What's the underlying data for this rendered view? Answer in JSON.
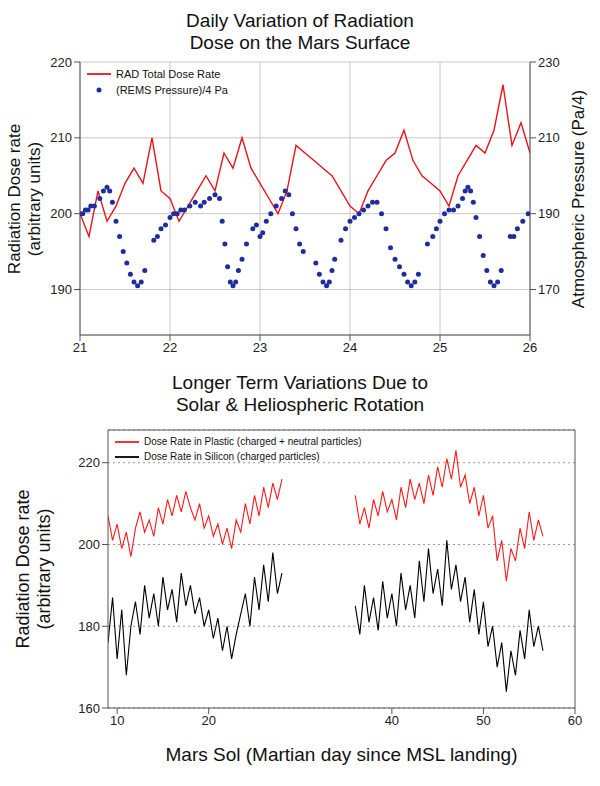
{
  "chart_data": [
    {
      "type": "line",
      "title": "Daily Variation of Radiation\nDose on the Mars Surface",
      "ylabel": "Radiation Dose rate\n(arbitrary units)",
      "y2label": "Atmospheric Pressure (Pa/4)",
      "xlim": [
        21,
        26
      ],
      "xticks": [
        21,
        22,
        23,
        24,
        25,
        26
      ],
      "ylim": [
        184,
        220
      ],
      "yticks": [
        190,
        200,
        210,
        220
      ],
      "y2lim": [
        158,
        230
      ],
      "y2ticks": [
        170,
        190,
        210,
        230
      ],
      "grid": true,
      "legend": "upper left",
      "series": [
        {
          "name": "RAD Total Dose Rate",
          "type": "line",
          "color": "#e8141b",
          "x": [
            21.0,
            21.1,
            21.2,
            21.3,
            21.4,
            21.5,
            21.6,
            21.7,
            21.8,
            21.9,
            22.0,
            22.1,
            22.2,
            22.3,
            22.4,
            22.5,
            22.6,
            22.7,
            22.8,
            22.9,
            23.0,
            23.1,
            23.2,
            23.3,
            23.4,
            23.5,
            23.6,
            23.7,
            23.8,
            23.9,
            24.0,
            24.1,
            24.2,
            24.3,
            24.4,
            24.5,
            24.6,
            24.7,
            24.8,
            24.9,
            25.0,
            25.1,
            25.2,
            25.3,
            25.4,
            25.5,
            25.6,
            25.7,
            25.8,
            25.9,
            26.0
          ],
          "values": [
            200,
            197,
            203,
            199,
            201,
            204,
            206,
            204,
            210,
            203,
            202,
            199,
            201,
            203,
            205,
            203,
            208,
            206,
            210,
            206,
            204,
            202,
            200,
            203,
            209,
            208,
            207,
            206,
            205,
            203,
            201,
            200,
            203,
            205,
            207,
            208,
            211,
            207,
            205,
            204,
            203,
            201,
            205,
            207,
            209,
            208,
            211,
            217,
            209,
            212,
            208
          ]
        },
        {
          "name": "(REMS Pressure)/4 Pa",
          "type": "scatter",
          "marker": "circle",
          "color": "#1f2c9c",
          "axis": "y2",
          "x": [
            21.0,
            21.03,
            21.06,
            21.09,
            21.12,
            21.16,
            21.22,
            21.26,
            21.3,
            21.33,
            21.36,
            21.4,
            21.44,
            21.48,
            21.52,
            21.56,
            21.6,
            21.64,
            21.68,
            21.72,
            21.82,
            21.86,
            21.9,
            21.95,
            22.0,
            22.04,
            22.08,
            22.12,
            22.16,
            22.22,
            22.28,
            22.34,
            22.38,
            22.44,
            22.5,
            22.55,
            22.58,
            22.61,
            22.64,
            22.67,
            22.7,
            22.73,
            22.76,
            22.8,
            22.85,
            22.92,
            22.96,
            23.0,
            23.03,
            23.07,
            23.12,
            23.18,
            23.24,
            23.28,
            23.32,
            23.36,
            23.4,
            23.44,
            23.48,
            23.62,
            23.66,
            23.7,
            23.74,
            23.77,
            23.8,
            23.83,
            23.9,
            23.95,
            24.0,
            24.05,
            24.1,
            24.15,
            24.2,
            24.25,
            24.3,
            24.35,
            24.4,
            24.45,
            24.5,
            24.55,
            24.6,
            24.64,
            24.68,
            24.72,
            24.76,
            24.86,
            24.92,
            24.96,
            25.0,
            25.05,
            25.1,
            25.15,
            25.2,
            25.25,
            25.28,
            25.31,
            25.34,
            25.37,
            25.4,
            25.44,
            25.48,
            25.52,
            25.56,
            25.6,
            25.64,
            25.68,
            25.78,
            25.82,
            25.86,
            25.92,
            25.98
          ],
          "values": [
            190,
            190,
            191,
            191,
            192,
            192,
            194,
            196,
            197,
            196,
            193,
            188,
            184,
            180,
            177,
            174,
            172,
            171,
            172,
            175,
            183,
            184,
            186,
            187,
            189,
            190,
            190,
            191,
            191,
            192,
            193,
            192,
            193,
            194,
            195,
            194,
            188,
            182,
            176,
            172,
            171,
            172,
            175,
            178,
            182,
            186,
            187,
            184,
            185,
            188,
            190,
            192,
            194,
            196,
            195,
            190,
            186,
            182,
            180,
            177,
            174,
            172,
            171,
            172,
            175,
            178,
            183,
            186,
            188,
            189,
            190,
            191,
            192,
            193,
            193,
            190,
            186,
            181,
            178,
            176,
            174,
            172,
            171,
            172,
            174,
            182,
            184,
            186,
            188,
            190,
            191,
            191,
            192,
            194,
            196,
            197,
            196,
            193,
            189,
            184,
            179,
            175,
            172,
            171,
            172,
            175,
            184,
            184,
            186,
            188,
            190
          ]
        }
      ]
    },
    {
      "type": "line",
      "title": "Longer Term Variations Due to\nSolar & Heliospheric Rotation",
      "xlabel": "Mars Sol (Martian day since MSL landing)",
      "ylabel": "Radiation Dose rate\n(arbitrary units)",
      "xlim": [
        9,
        60
      ],
      "xticks": [
        10,
        20,
        40,
        50,
        60
      ],
      "ylim": [
        160,
        228
      ],
      "yticks": [
        160,
        180,
        200,
        220
      ],
      "grid": "y",
      "legend": "upper left",
      "x": [
        9,
        9.5,
        10,
        10.5,
        11,
        11.5,
        12,
        12.5,
        13,
        13.5,
        14,
        14.5,
        15,
        15.5,
        16,
        16.5,
        17,
        17.5,
        18,
        18.5,
        19,
        19.5,
        20,
        20.5,
        21,
        21.5,
        22,
        22.5,
        23,
        23.5,
        24,
        24.5,
        25,
        25.5,
        26,
        26.5,
        27,
        27.5,
        28,
        32,
        36,
        36.5,
        37,
        37.5,
        38,
        38.5,
        39,
        39.5,
        40,
        40.5,
        41,
        41.5,
        42,
        42.5,
        43,
        43.5,
        44,
        44.5,
        45,
        45.5,
        46,
        46.5,
        47,
        47.5,
        48,
        48.5,
        49,
        49.5,
        50,
        50.5,
        51,
        51.5,
        52,
        52.5,
        53,
        53.5,
        54,
        54.5,
        55,
        55.5,
        56,
        56.5
      ],
      "series": [
        {
          "name": "Dose Rate in Plastic (charged + neutral particles)",
          "color": "#ff1a1a",
          "values": [
            207,
            201,
            205,
            199,
            203,
            197,
            204,
            208,
            203,
            206,
            202,
            209,
            205,
            211,
            207,
            212,
            208,
            213,
            209,
            206,
            210,
            204,
            207,
            202,
            205,
            200,
            204,
            199,
            206,
            203,
            210,
            205,
            212,
            207,
            214,
            209,
            215,
            211,
            216,
            null,
            212,
            205,
            209,
            204,
            211,
            207,
            213,
            208,
            211,
            206,
            214,
            209,
            216,
            211,
            215,
            210,
            217,
            212,
            219,
            214,
            221,
            216,
            223,
            214,
            217,
            210,
            214,
            207,
            212,
            204,
            207,
            196,
            201,
            191,
            199,
            196,
            204,
            199,
            208,
            201,
            206,
            202
          ]
        },
        {
          "name": "Dose Rate in Silicon (charged particles)",
          "color": "#000000",
          "values": [
            176,
            187,
            172,
            184,
            168,
            180,
            186,
            178,
            190,
            182,
            188,
            180,
            192,
            184,
            189,
            181,
            193,
            185,
            190,
            183,
            187,
            180,
            184,
            177,
            182,
            174,
            180,
            172,
            178,
            183,
            188,
            180,
            192,
            184,
            195,
            186,
            198,
            188,
            193,
            null,
            185,
            178,
            190,
            181,
            187,
            179,
            191,
            182,
            188,
            180,
            193,
            184,
            190,
            182,
            196,
            186,
            199,
            188,
            194,
            185,
            201,
            189,
            195,
            186,
            192,
            181,
            189,
            178,
            186,
            175,
            180,
            170,
            176,
            164,
            174,
            168,
            179,
            172,
            184,
            175,
            180,
            174
          ]
        }
      ]
    }
  ]
}
